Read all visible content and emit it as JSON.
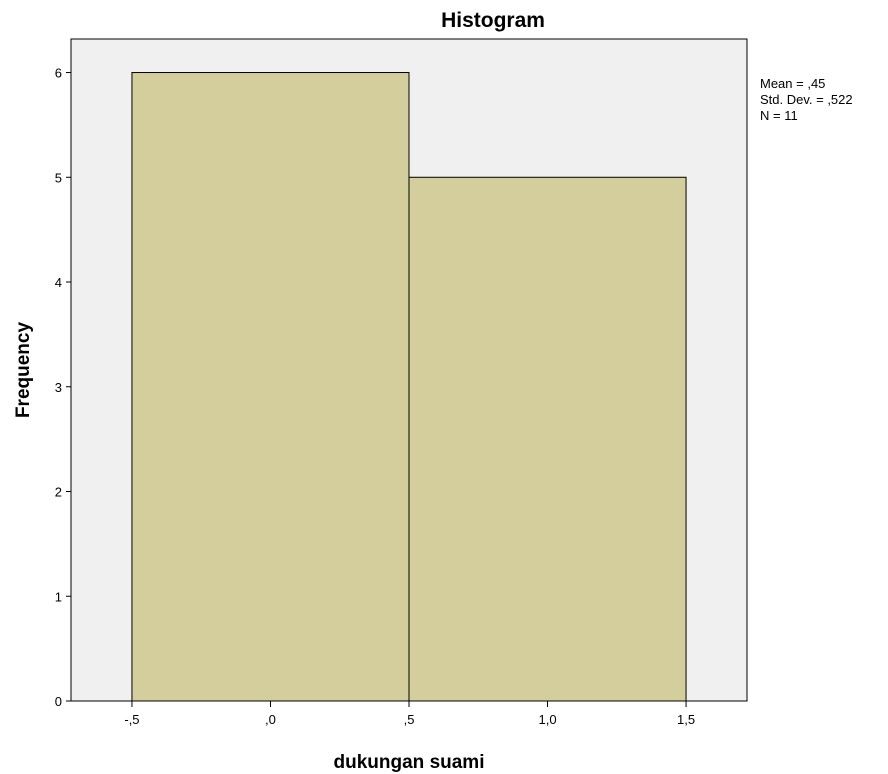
{
  "chart_data": {
    "type": "bar",
    "subtype": "histogram",
    "title": "Histogram",
    "xlabel": "dukungan suami",
    "ylabel": "Frequency",
    "bins": [
      {
        "start": -0.5,
        "end": 0.5,
        "count": 6
      },
      {
        "start": 0.5,
        "end": 1.5,
        "count": 5
      }
    ],
    "xlim": [
      -0.72,
      1.72
    ],
    "ylim": [
      0,
      6.32
    ],
    "x_ticks": [
      {
        "value": -0.5,
        "label": "-,5"
      },
      {
        "value": 0.0,
        "label": ",0"
      },
      {
        "value": 0.5,
        "label": ",5"
      },
      {
        "value": 1.0,
        "label": "1,0"
      },
      {
        "value": 1.5,
        "label": "1,5"
      }
    ],
    "y_ticks": [
      {
        "value": 0,
        "label": "0"
      },
      {
        "value": 1,
        "label": "1"
      },
      {
        "value": 2,
        "label": "2"
      },
      {
        "value": 3,
        "label": "3"
      },
      {
        "value": 4,
        "label": "4"
      },
      {
        "value": 5,
        "label": "5"
      },
      {
        "value": 6,
        "label": "6"
      }
    ],
    "stats": [
      "Mean = ,45",
      "Std. Dev. = ,522",
      "N = 11"
    ],
    "grid": false,
    "colors": {
      "bar_fill": "#d3ce9b",
      "bar_stroke": "#000000",
      "plot_background": "#f0f0f0",
      "page_background": "#ffffff"
    }
  }
}
